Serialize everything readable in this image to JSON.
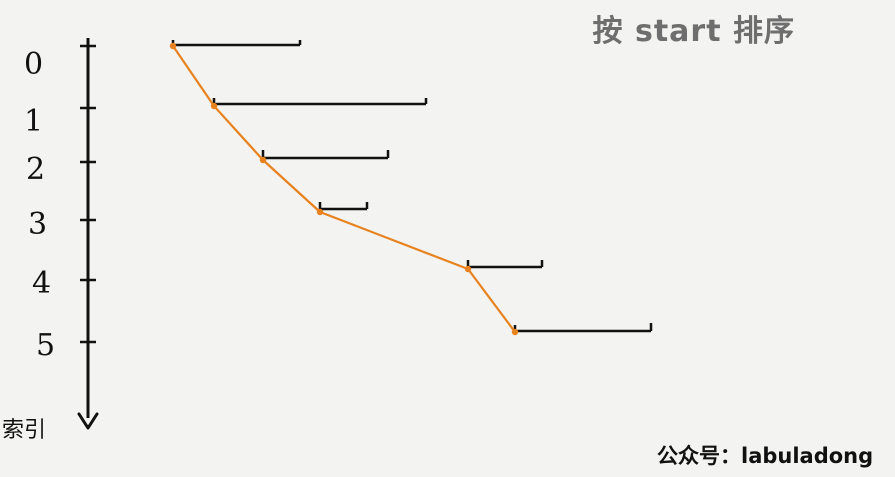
{
  "title": "按 start 排序",
  "axis_label": "索引",
  "watermark": "公众号：labuladong",
  "colors": {
    "background": "#f3f3f1",
    "line": "#111111",
    "path": "#e8821e",
    "title": "#6e6e6e"
  },
  "indices": [
    "0",
    "1",
    "2",
    "3",
    "4",
    "5"
  ]
}
